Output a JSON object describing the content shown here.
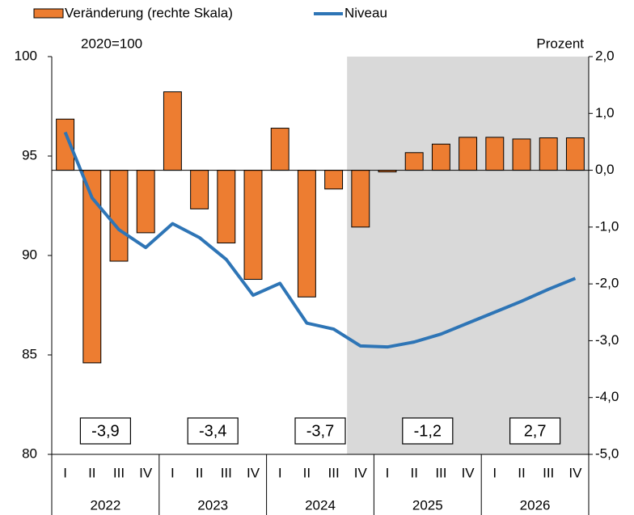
{
  "chart_data": {
    "type": "bar_line",
    "left_unit": "2020=100",
    "right_unit": "Prozent",
    "categories": [
      "I",
      "II",
      "III",
      "IV",
      "I",
      "II",
      "III",
      "IV",
      "I",
      "II",
      "III",
      "IV",
      "I",
      "II",
      "III",
      "IV",
      "I",
      "II",
      "III",
      "IV"
    ],
    "years": [
      "2022",
      "2023",
      "2024",
      "2025",
      "2026"
    ],
    "series": [
      {
        "name": "Veränderung (rechte Skala)",
        "type": "bar",
        "axis": "y2",
        "color": "#ed7d31",
        "values": [
          0.9,
          -3.39,
          -1.6,
          -1.1,
          1.38,
          -0.68,
          -1.28,
          -1.92,
          0.74,
          -2.23,
          -0.33,
          -1.0,
          -0.03,
          0.31,
          0.46,
          0.58,
          0.58,
          0.55,
          0.57,
          0.57
        ]
      },
      {
        "name": "Niveau",
        "type": "line",
        "axis": "y",
        "color": "#2e75b6",
        "values": [
          96.2,
          92.9,
          91.3,
          90.4,
          91.6,
          90.9,
          89.8,
          88.0,
          88.6,
          86.6,
          86.3,
          85.45,
          85.4,
          85.65,
          86.05,
          86.6,
          87.15,
          87.7,
          88.3,
          88.85
        ]
      }
    ],
    "annual_changes": {
      "values": [
        -3.9,
        -3.4,
        -3.7,
        -1.2,
        2.7
      ],
      "value_labels": [
        "-3,9",
        "-3,4",
        "-3,7",
        "-1,2",
        "2,7"
      ]
    },
    "shade_start_index": 11,
    "ylim": [
      80,
      100
    ],
    "yticks": [
      80,
      85,
      90,
      95,
      100
    ],
    "y2lim": [
      -5,
      2
    ],
    "y2ticks": [
      {
        "value": -5,
        "label": "-5,0"
      },
      {
        "value": -4,
        "label": "-4,0"
      },
      {
        "value": -3,
        "label": "-3,0"
      },
      {
        "value": -2,
        "label": "-2,0"
      },
      {
        "value": -1,
        "label": "-1,0"
      },
      {
        "value": 0,
        "label": "0,0"
      },
      {
        "value": 1,
        "label": "1,0"
      },
      {
        "value": 2,
        "label": "2,0"
      }
    ]
  }
}
